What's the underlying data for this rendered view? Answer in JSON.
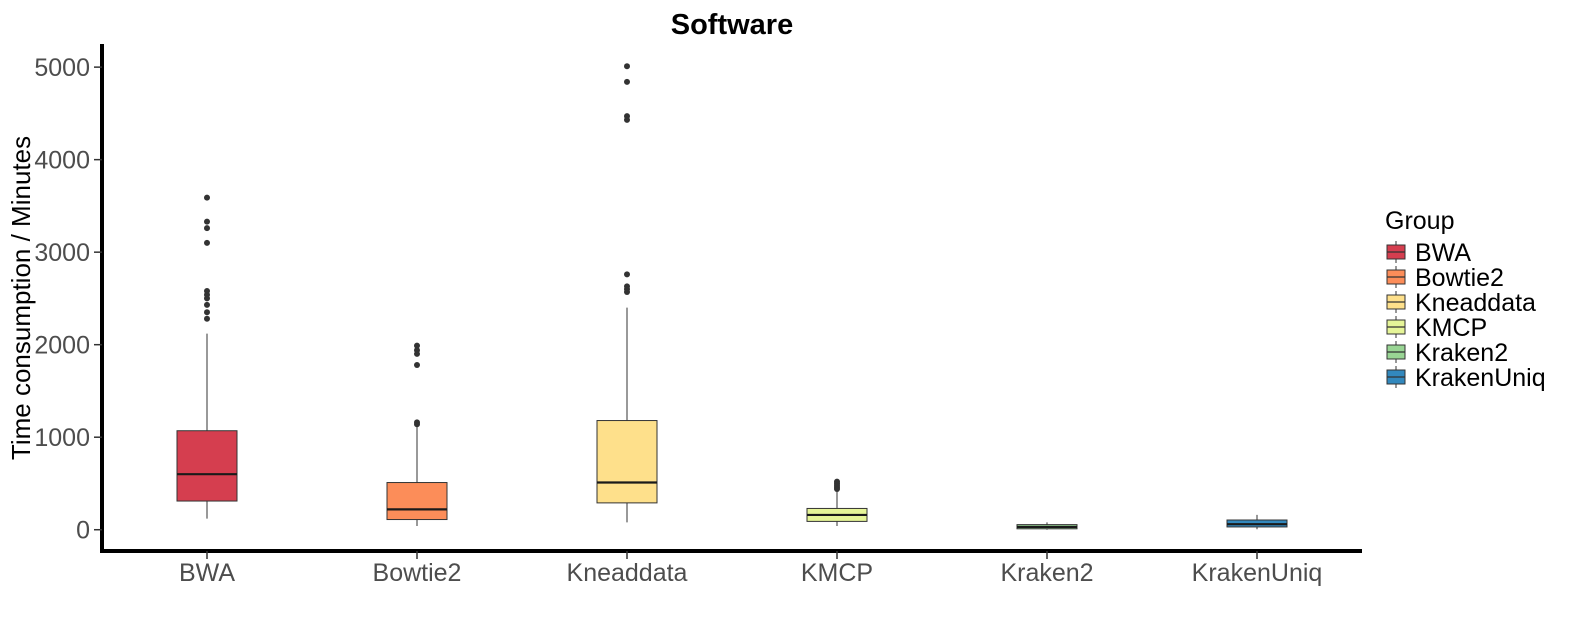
{
  "chart_data": {
    "type": "boxplot",
    "title": "Software",
    "xlabel": "",
    "ylabel": "Time consumption / Minutes",
    "ylim": [
      -230,
      5250
    ],
    "yticks": [
      0,
      1000,
      2000,
      3000,
      4000,
      5000
    ],
    "ytick_labels": [
      "0",
      "1000",
      "2000",
      "3000",
      "4000",
      "5000"
    ],
    "categories": [
      "BWA",
      "Bowtie2",
      "Kneaddata",
      "KMCP",
      "Kraken2",
      "KrakenUniq"
    ],
    "grid": false,
    "legend": {
      "title": "Group",
      "position": "right"
    },
    "series": [
      {
        "name": "BWA",
        "color": "#D53E4F",
        "q1": 310,
        "median": 600,
        "q3": 1070,
        "whisker_low": 120,
        "whisker_high": 2120,
        "outliers": [
          2280,
          2350,
          2430,
          2500,
          2540,
          2580,
          3100,
          3260,
          3330,
          3590
        ]
      },
      {
        "name": "Bowtie2",
        "color": "#FC8D59",
        "q1": 110,
        "median": 220,
        "q3": 510,
        "whisker_low": 40,
        "whisker_high": 1120,
        "outliers": [
          1140,
          1160,
          1780,
          1900,
          1940,
          1990
        ]
      },
      {
        "name": "Kneaddata",
        "color": "#FEE08B",
        "q1": 290,
        "median": 510,
        "q3": 1180,
        "whisker_low": 80,
        "whisker_high": 2400,
        "outliers": [
          2570,
          2600,
          2630,
          2760,
          4430,
          4470,
          4840,
          5010
        ]
      },
      {
        "name": "KMCP",
        "color": "#E6F598",
        "q1": 90,
        "median": 160,
        "q3": 230,
        "whisker_low": 40,
        "whisker_high": 420,
        "outliers": [
          440,
          460,
          480,
          500,
          520
        ]
      },
      {
        "name": "Kraken2",
        "color": "#99D594",
        "q1": 10,
        "median": 30,
        "q3": 55,
        "whisker_low": 0,
        "whisker_high": 80,
        "outliers": []
      },
      {
        "name": "KrakenUniq",
        "color": "#3288BD",
        "q1": 30,
        "median": 60,
        "q3": 105,
        "whisker_low": 5,
        "whisker_high": 160,
        "outliers": []
      }
    ]
  }
}
